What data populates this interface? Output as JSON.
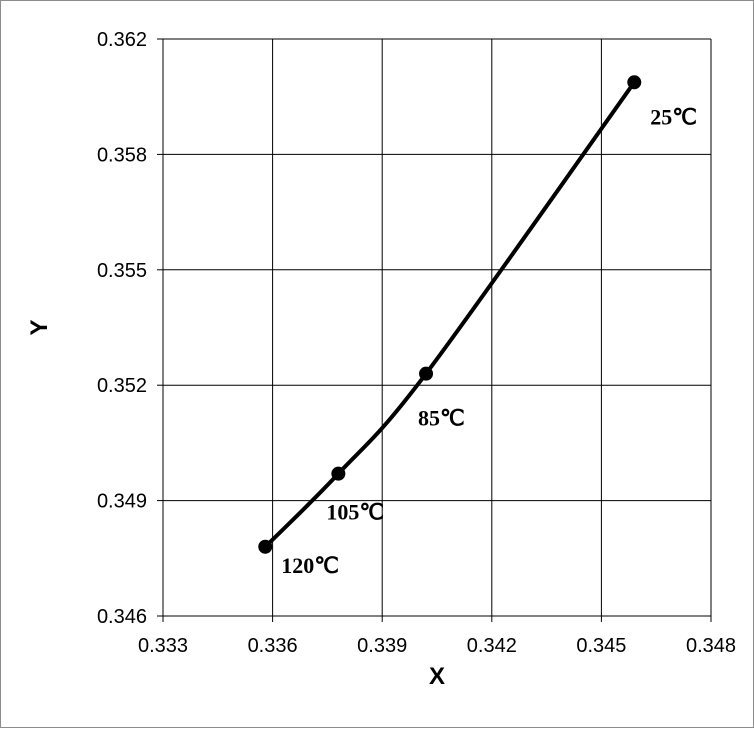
{
  "chart_data": {
    "type": "line",
    "title": "",
    "xlabel": "X",
    "ylabel": "Y",
    "xlim": [
      0.333,
      0.348
    ],
    "ylim": [
      0.346,
      0.362
    ],
    "x_ticks": [
      "0.333",
      "0.336",
      "0.339",
      "0.342",
      "0.345",
      "0.348"
    ],
    "y_ticks": [
      "0.346",
      "0.349",
      "0.352",
      "0.355",
      "0.358",
      "0.362"
    ],
    "grid": true,
    "legend": "none",
    "line_color": "#000000",
    "series": [
      {
        "points": [
          {
            "x": 0.3358,
            "y": 0.3478,
            "label": "120℃"
          },
          {
            "x": 0.3378,
            "y": 0.3497,
            "label": "105℃"
          },
          {
            "x": 0.3402,
            "y": 0.3523,
            "label": "85℃"
          },
          {
            "x": 0.3459,
            "y": 0.3605,
            "label": "25℃"
          }
        ]
      }
    ]
  }
}
